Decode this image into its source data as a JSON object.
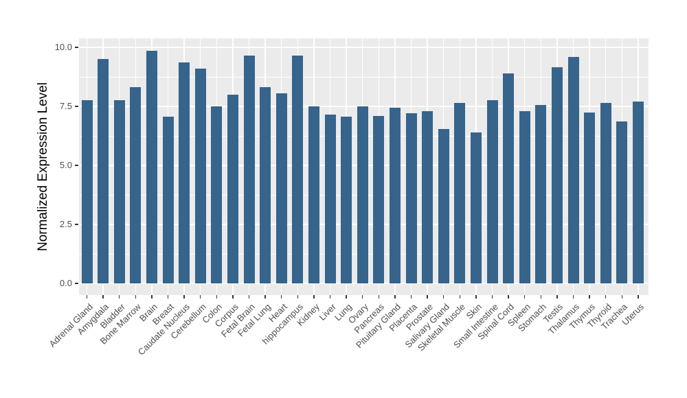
{
  "chart_data": {
    "type": "bar",
    "title": "",
    "xlabel": "",
    "ylabel": "Normalized Expression Level",
    "categories": [
      "Adrenal Gland",
      "Amygdala",
      "Bladder",
      "Bone Marrow",
      "Brain",
      "Breast",
      "Caudate Nucleus",
      "Cerebellum",
      "Colon",
      "Corpus",
      "Fetal Brain",
      "Fetal Lung",
      "Heart",
      "hippocampus",
      "Kidney",
      "Liver",
      "Lung",
      "Ovary",
      "Pancreas",
      "Pituitary Gland",
      "Placenta",
      "Prostate",
      "Salivary Gland",
      "Skeletal Muscle",
      "Skin",
      "Small Intestine",
      "Spinal Cord",
      "Spleen",
      "Stomach",
      "Testis",
      "Thalamus",
      "Thymus",
      "Thyroid",
      "Trachea",
      "Uterus"
    ],
    "values": [
      7.75,
      9.5,
      7.75,
      8.3,
      9.85,
      7.05,
      9.35,
      9.1,
      7.5,
      8.0,
      9.65,
      8.3,
      8.05,
      9.65,
      7.5,
      7.15,
      7.05,
      7.5,
      7.1,
      7.45,
      7.2,
      7.3,
      6.55,
      7.65,
      6.4,
      7.75,
      8.9,
      7.3,
      7.55,
      9.15,
      9.6,
      7.25,
      7.65,
      6.85,
      7.7
    ],
    "ylim": [
      0,
      10.5
    ],
    "yticks": [
      0,
      2.5,
      5,
      7.5,
      10
    ],
    "ytick_labels": [
      "0.0",
      "2.5",
      "5.0",
      "7.5",
      "10.0"
    ],
    "yminor_ticks": [
      1.25,
      3.75,
      6.25,
      8.75
    ],
    "x_tick_angle_deg": 45,
    "grid": "on",
    "legend": "none",
    "colors": {
      "bar": "#36648B",
      "panel_background": "#EBEBEB",
      "gridline": "#FFFFFF",
      "axis_text": "#4D4D4D",
      "axis_title": "#000000",
      "tick_mark": "#333333",
      "figure_background": "#FFFFFF"
    }
  }
}
